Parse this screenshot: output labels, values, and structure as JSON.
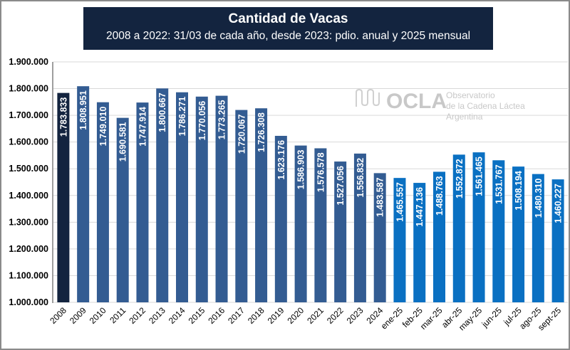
{
  "chart_data": {
    "type": "bar",
    "title": "Cantidad  de Vacas",
    "subtitle": "2008 a 2022: 31/03 de cada año, desde 2023: pdio. anual y 2025 mensual",
    "categories": [
      "2008",
      "2009",
      "2010",
      "2011",
      "2012",
      "2013",
      "2014",
      "2015",
      "2016",
      "2017",
      "2018",
      "2019",
      "2020",
      "2021",
      "2022",
      "2023",
      "2024",
      "ene-25",
      "feb-25",
      "mar-25",
      "abr-25",
      "may-25",
      "jun-25",
      "jul-25",
      "ago-25",
      "sept-25"
    ],
    "values": [
      1783833,
      1808951,
      1749010,
      1690581,
      1747914,
      1800667,
      1786271,
      1770056,
      1773265,
      1720067,
      1726308,
      1623176,
      1586903,
      1576578,
      1527056,
      1556832,
      1483587,
      1465557,
      1447136,
      1488763,
      1552872,
      1561465,
      1531767,
      1508194,
      1480310,
      1460227
    ],
    "data_labels": [
      "1.783.833",
      "1.808.951",
      "1.749.010",
      "1.690.581",
      "1.747.914",
      "1.800.667",
      "1.786.271",
      "1.770.056",
      "1.773.265",
      "1.720.067",
      "1.726.308",
      "1.623.176",
      "1.586.903",
      "1.576.578",
      "1.527.056",
      "1.556.832",
      "1.483.587",
      "1.465.557",
      "1.447.136",
      "1.488.763",
      "1.552.872",
      "1.561.465",
      "1.531.767",
      "1.508.194",
      "1.480.310",
      "1.460.227"
    ],
    "ylim": [
      1000000,
      1900000
    ],
    "yticks": [
      "1.000.000",
      "1.100.000",
      "1.200.000",
      "1.300.000",
      "1.400.000",
      "1.500.000",
      "1.600.000",
      "1.700.000",
      "1.800.000",
      "1.900.000"
    ],
    "grid": true,
    "colors": {
      "first": "#13243f",
      "annual": "#335c92",
      "monthly": "#0a70c2"
    }
  },
  "watermark": {
    "logo": "OCLA",
    "line1": "Observatorio",
    "line2": "de la Cadena Láctea",
    "line3": "Argentina"
  }
}
